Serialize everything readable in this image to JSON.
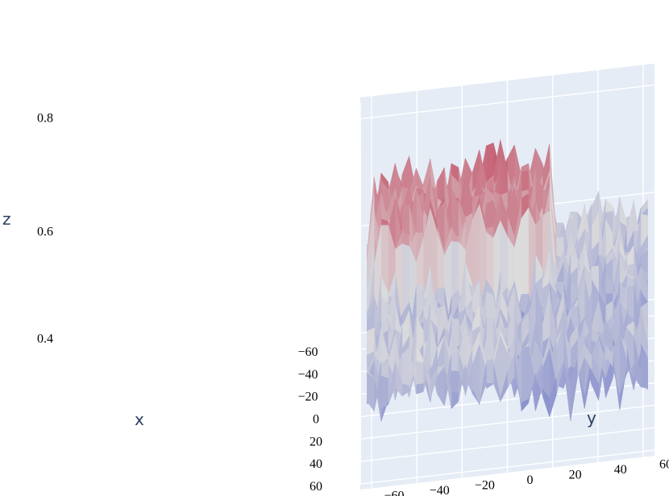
{
  "chart_data": {
    "type": "surface",
    "title": "",
    "xlabel": "x",
    "ylabel": "y",
    "zlabel": "z",
    "x_ticks": [
      "−60",
      "−40",
      "−20",
      "0",
      "20",
      "40",
      "60"
    ],
    "y_ticks": [
      "−60",
      "−40",
      "−20",
      "0",
      "20",
      "40",
      "60"
    ],
    "z_ticks": [
      "0.4",
      "0.6",
      "0.8"
    ],
    "xlim": [
      -65,
      65
    ],
    "ylim": [
      -65,
      65
    ],
    "zlim": [
      0.38,
      0.84
    ],
    "z_range_surface": [
      0.39,
      0.82
    ],
    "colorscale": "coolwarm",
    "scene_background": "#e5ecf6",
    "grid_color": "#ffffff",
    "colors": {
      "low": "#3b4cc0",
      "mid": "#dddddd",
      "high": "#b40426"
    }
  }
}
